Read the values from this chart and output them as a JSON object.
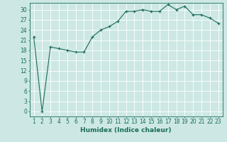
{
  "x": [
    1,
    2,
    3,
    4,
    5,
    6,
    7,
    8,
    9,
    10,
    11,
    12,
    13,
    14,
    15,
    16,
    17,
    18,
    19,
    20,
    21,
    22,
    23
  ],
  "y": [
    22,
    0,
    19,
    18.5,
    18,
    17.5,
    17.5,
    22,
    24,
    25,
    26.5,
    29.5,
    29.5,
    30,
    29.5,
    29.5,
    31.5,
    30,
    31,
    28.5,
    28.5,
    27.5,
    26
  ],
  "line_color": "#1a6b5a",
  "marker": "+",
  "marker_size": 3,
  "background_color": "#cde8e4",
  "grid_color": "#ffffff",
  "xlabel": "Humidex (Indice chaleur)",
  "ylabel": "",
  "ylim": [
    -1.5,
    32
  ],
  "xlim": [
    0.5,
    23.5
  ],
  "yticks": [
    0,
    3,
    6,
    9,
    12,
    15,
    18,
    21,
    24,
    27,
    30
  ],
  "xticks": [
    1,
    2,
    3,
    4,
    5,
    6,
    7,
    8,
    9,
    10,
    11,
    12,
    13,
    14,
    15,
    16,
    17,
    18,
    19,
    20,
    21,
    22,
    23
  ],
  "tick_color": "#1a6b5a",
  "xlabel_fontsize": 6.5,
  "tick_labelsize": 5.5,
  "linewidth": 0.8,
  "markeredgewidth": 0.8
}
